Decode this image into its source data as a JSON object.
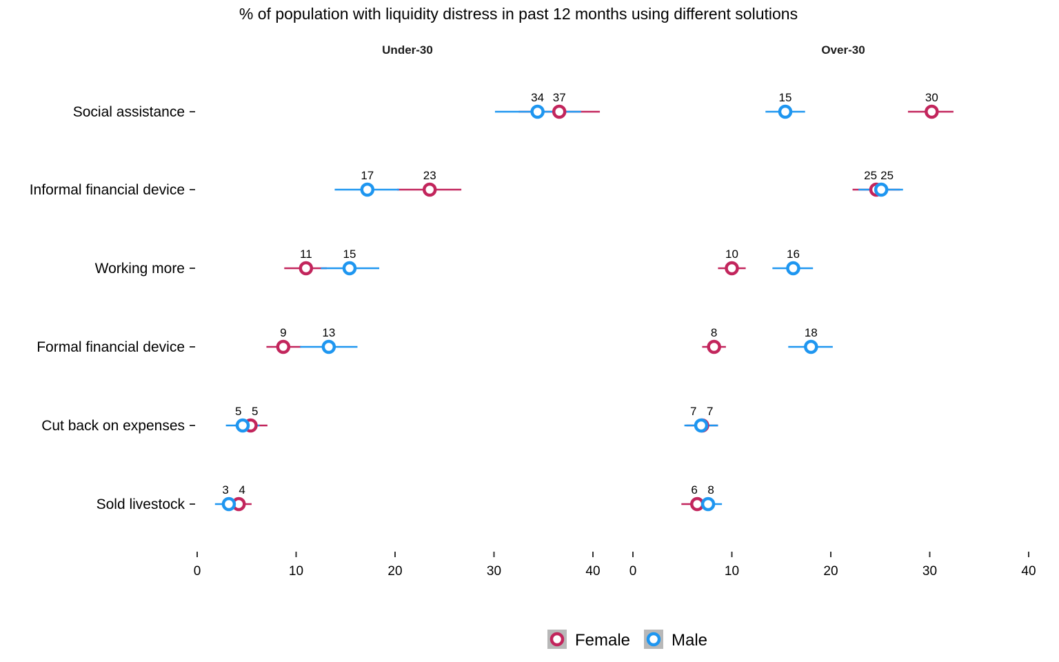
{
  "chart_data": {
    "type": "scatter",
    "subtype": "dot-plot-with-error-bars",
    "title": "% of population with liquidity distress in past 12 months using different solutions",
    "categories": [
      "Social assistance",
      "Informal financial device",
      "Working more",
      "Formal financial device",
      "Cut back on expenses",
      "Sold livestock"
    ],
    "xlim": [
      0,
      40
    ],
    "x_ticks": [
      0,
      10,
      20,
      30,
      40
    ],
    "grid": false,
    "legend_position": "bottom",
    "colors": {
      "Female": "#c2255c",
      "Male": "#1e96f0"
    },
    "legend": [
      {
        "name": "Female",
        "color": "#c2255c"
      },
      {
        "name": "Male",
        "color": "#1e96f0"
      }
    ],
    "panels": [
      {
        "name": "Under-30",
        "series": [
          {
            "name": "Female",
            "values": [
              36.6,
              23.5,
              11.0,
              8.7,
              5.4,
              4.2
            ],
            "lower": [
              32.5,
              20.2,
              8.8,
              7.0,
              3.8,
              3.0
            ],
            "upper": [
              40.7,
              26.7,
              13.1,
              10.5,
              7.1,
              5.5
            ],
            "labels": [
              "37",
              "23",
              "11",
              "9",
              "5",
              "4"
            ]
          },
          {
            "name": "Male",
            "values": [
              34.4,
              17.2,
              15.4,
              13.3,
              4.6,
              3.2
            ],
            "lower": [
              30.1,
              13.9,
              12.5,
              10.4,
              2.9,
              1.8
            ],
            "upper": [
              38.8,
              20.4,
              18.4,
              16.2,
              6.3,
              4.6
            ],
            "labels": [
              "34",
              "17",
              "15",
              "13",
              "5",
              "3"
            ]
          }
        ]
      },
      {
        "name": "Over-30",
        "series": [
          {
            "name": "Female",
            "values": [
              30.2,
              24.6,
              10.0,
              8.2,
              7.0,
              6.5
            ],
            "lower": [
              27.8,
              22.2,
              8.6,
              7.0,
              5.4,
              4.9
            ],
            "upper": [
              32.4,
              27.0,
              11.4,
              9.4,
              8.6,
              8.0
            ],
            "labels": [
              "30",
              "25",
              "10",
              "8",
              "7",
              "6"
            ]
          },
          {
            "name": "Male",
            "values": [
              15.4,
              25.1,
              16.2,
              18.0,
              6.9,
              7.6
            ],
            "lower": [
              13.4,
              22.8,
              14.1,
              15.7,
              5.2,
              6.0
            ],
            "upper": [
              17.4,
              27.3,
              18.2,
              20.2,
              8.6,
              9.0
            ],
            "labels": [
              "15",
              "25",
              "16",
              "18",
              "7",
              "8"
            ]
          }
        ]
      }
    ]
  }
}
